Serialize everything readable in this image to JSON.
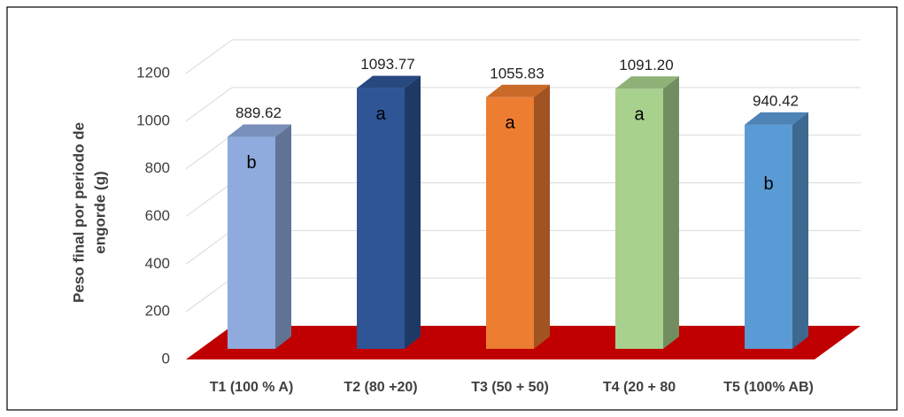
{
  "chart_data": {
    "type": "bar3d",
    "y_label_lines": [
      "Peso final por periodo de",
      "engorde (g)"
    ],
    "categories": [
      "T1 (100 % A)",
      "T2 (80 +20)",
      "T3 (50 + 50)",
      "T4 (20 + 80",
      "T5 (100% AB)"
    ],
    "values": [
      889.62,
      1093.77,
      1055.83,
      1091.2,
      940.42
    ],
    "value_labels": [
      "889.62",
      "1093.77",
      "1055.83",
      "1091.20",
      "940.42"
    ],
    "annotations": [
      "b",
      "a",
      "a",
      "a",
      "b"
    ],
    "colors": [
      "#8faadc",
      "#2f5597",
      "#ed7d31",
      "#a9d18e",
      "#5b9bd5"
    ],
    "floor_color": "#c00000",
    "ylim": [
      0,
      1200
    ],
    "yticks": [
      0,
      200,
      400,
      600,
      800,
      1000,
      1200
    ],
    "grid": true
  }
}
